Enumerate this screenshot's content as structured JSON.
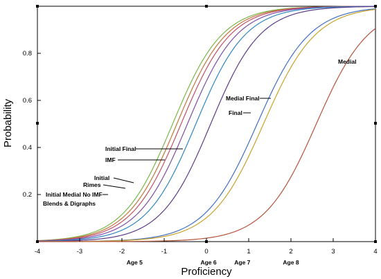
{
  "chart_data": {
    "type": "line",
    "title": "",
    "xlabel": "Proficiency",
    "ylabel": "Probability",
    "xlim": [
      -4,
      4
    ],
    "ylim": [
      0,
      1
    ],
    "x_ticks": [
      "-4",
      "-3",
      "-2",
      "-1",
      "0",
      "1",
      "2",
      "3",
      "4"
    ],
    "y_ticks": [
      "0.2",
      "0.4",
      "0.6",
      "0.8"
    ],
    "grid": false,
    "legend": "none",
    "series": [
      {
        "name": "Blends & Digraphs",
        "color": "#7ab648",
        "b": -0.8,
        "a": 1.0
      },
      {
        "name": "Initial Medial No IMF",
        "color": "#c0763a",
        "b": -0.7,
        "a": 1.0
      },
      {
        "name": "Rimes",
        "color": "#c0506a",
        "b": -0.6,
        "a": 1.0
      },
      {
        "name": "Initial",
        "color": "#7a4da6",
        "b": -0.45,
        "a": 1.0
      },
      {
        "name": "Initial Final",
        "color": "#2e86c1",
        "b": -0.25,
        "a": 1.0
      },
      {
        "name": "IMF",
        "color": "#5a3a8a",
        "b": 0.1,
        "a": 1.0
      },
      {
        "name": "Medial Final",
        "color": "#3f6fc2",
        "b": 1.2,
        "a": 0.95
      },
      {
        "name": "Final",
        "color": "#c8a22a",
        "b": 1.35,
        "a": 0.95
      },
      {
        "name": "Medial",
        "color": "#b5523a",
        "b": 2.6,
        "a": 0.95
      }
    ],
    "age_labels": [
      {
        "text": "Age 5",
        "x": -1.7
      },
      {
        "text": "Age 6",
        "x": 0.05
      },
      {
        "text": "Age 7",
        "x": 0.85
      },
      {
        "text": "Age 8",
        "x": 2.0
      }
    ]
  }
}
